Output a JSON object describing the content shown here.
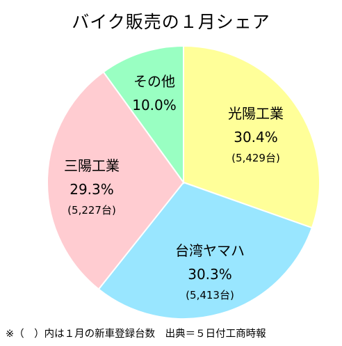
{
  "chart_data": {
    "type": "pie",
    "title": "バイク販売の１月シェア",
    "slices": [
      {
        "label": "光陽工業",
        "percent_label": "30.4%",
        "percent": 30.4,
        "count_label": "(5,429台)",
        "count": 5429,
        "color": "#FFFF99"
      },
      {
        "label": "台湾ヤマハ",
        "percent_label": "30.3%",
        "percent": 30.3,
        "count_label": "(5,413台)",
        "count": 5413,
        "color": "#99E6FF"
      },
      {
        "label": "三陽工業",
        "percent_label": "29.3%",
        "percent": 29.3,
        "count_label": "(5,227台)",
        "count": 5227,
        "color": "#FFCCD1"
      },
      {
        "label": "その他",
        "percent_label": "10.0%",
        "percent": 10.0,
        "count_label": "",
        "count": null,
        "color": "#99FFC2"
      }
    ],
    "start": "12 o'clock, clockwise",
    "footnote": "※（　）内は１月の新車登録台数　出典＝５日付工商時報"
  }
}
